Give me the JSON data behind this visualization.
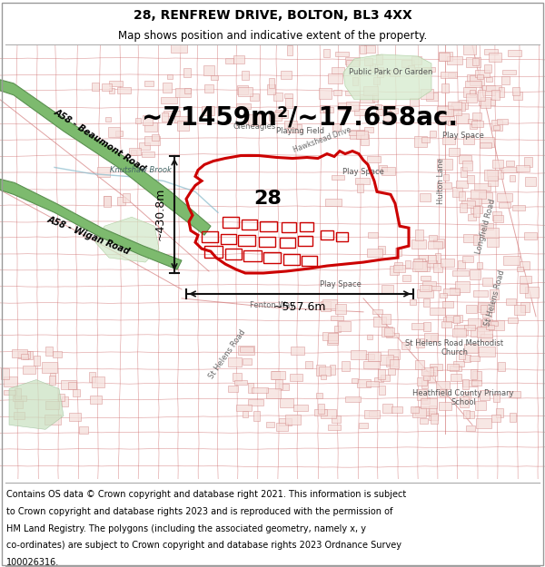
{
  "title_line1": "28, RENFREW DRIVE, BOLTON, BL3 4XX",
  "title_line2": "Map shows position and indicative extent of the property.",
  "area_text": "~71459m²/~17.658ac.",
  "width_label": "~557.6m",
  "height_label": "~430.8m",
  "number_label": "28",
  "footer_lines": [
    "Contains OS data © Crown copyright and database right 2021. This information is subject",
    "to Crown copyright and database rights 2023 and is reproduced with the permission of",
    "HM Land Registry. The polygons (including the associated geometry, namely x, y",
    "co-ordinates) are subject to Crown copyright and database rights 2023 Ordnance Survey",
    "100026316."
  ],
  "bg_color": "#ffffff",
  "map_bg_color": "#f7f4f0",
  "road_pink": "#e8a0a0",
  "road_pink_edge": "#cc6666",
  "building_fill": "#f5e0dc",
  "building_edge": "#d08080",
  "green_road_fill": "#7dba6e",
  "green_road_edge": "#5a9050",
  "green_area_fill": "#d8ecd0",
  "green_area_edge": "#a0c090",
  "red_color": "#cc0000",
  "dim_color": "#111111",
  "title_fontsize": 10,
  "subtitle_fontsize": 8.5,
  "area_fontsize": 20,
  "label_fontsize": 9,
  "number_fontsize": 16,
  "footer_fontsize": 7,
  "road_label_fontsize": 7,
  "map_text_fontsize": 6
}
